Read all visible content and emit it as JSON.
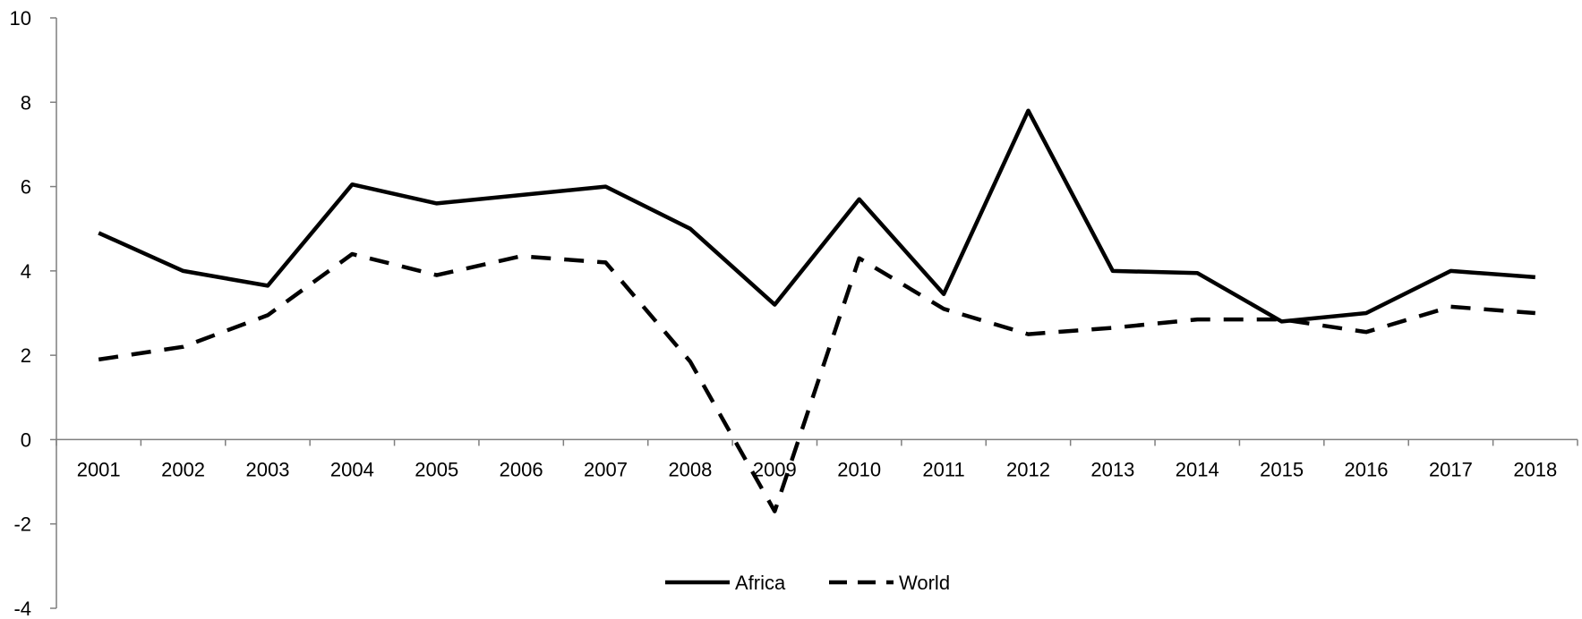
{
  "chart_data": {
    "type": "line",
    "title": "",
    "xlabel": "",
    "ylabel": "",
    "categories": [
      "2001",
      "2002",
      "2003",
      "2004",
      "2005",
      "2006",
      "2007",
      "2008",
      "2009",
      "2010",
      "2011",
      "2012",
      "2013",
      "2014",
      "2015",
      "2016",
      "2017",
      "2018"
    ],
    "ylim": [
      -4,
      10
    ],
    "yticks": [
      -4,
      -2,
      0,
      2,
      4,
      6,
      8,
      10
    ],
    "grid": false,
    "legend_position": "bottom-center",
    "series": [
      {
        "name": "Africa",
        "style": "solid",
        "color": "#000000",
        "values": [
          4.9,
          4.0,
          3.65,
          6.05,
          5.6,
          5.8,
          6.0,
          5.0,
          3.2,
          5.7,
          3.45,
          7.8,
          4.0,
          3.95,
          2.8,
          3.0,
          4.0,
          3.85
        ]
      },
      {
        "name": "World",
        "style": "dashed",
        "color": "#000000",
        "values": [
          1.9,
          2.2,
          2.95,
          4.4,
          3.9,
          4.35,
          4.2,
          1.85,
          -1.7,
          4.3,
          3.1,
          2.5,
          2.65,
          2.85,
          2.85,
          2.55,
          3.15,
          3.0
        ]
      }
    ]
  }
}
